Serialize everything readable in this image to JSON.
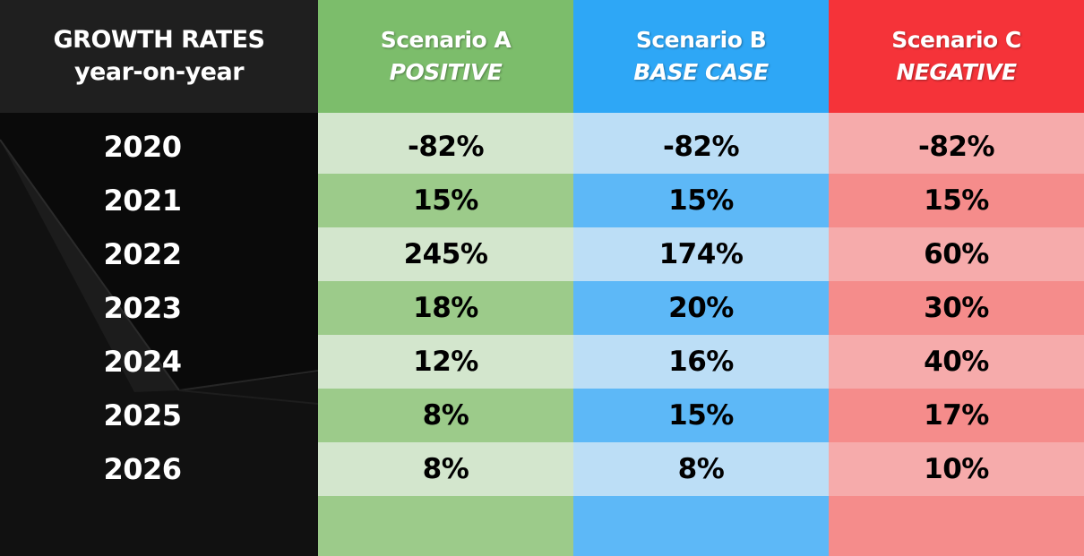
{
  "header": {
    "title_line1": "GROWTH RATES",
    "title_line2": "year-on-year"
  },
  "colors": {
    "scenario_a_header": "#7cbd6b",
    "scenario_a_light": "#d3e6cd",
    "scenario_a_dark": "#9ccb8a",
    "scenario_b_header": "#2ea7f6",
    "scenario_b_light": "#bcdef6",
    "scenario_b_dark": "#5db8f7",
    "scenario_c_header": "#f53339",
    "scenario_c_light": "#f6abab",
    "scenario_c_dark": "#f58c8b"
  },
  "chart_data": {
    "type": "table",
    "title": "GROWTH RATES year-on-year",
    "row_labels": [
      "2020",
      "2021",
      "2022",
      "2023",
      "2024",
      "2025",
      "2026"
    ],
    "columns": [
      {
        "name": "Scenario A",
        "subtitle": "POSITIVE",
        "values": [
          "-82%",
          "15%",
          "245%",
          "18%",
          "12%",
          "8%",
          "8%"
        ]
      },
      {
        "name": "Scenario B",
        "subtitle": "BASE CASE",
        "values": [
          "-82%",
          "15%",
          "174%",
          "20%",
          "16%",
          "15%",
          "8%"
        ]
      },
      {
        "name": "Scenario C",
        "subtitle": "NEGATIVE",
        "values": [
          "-82%",
          "15%",
          "60%",
          "30%",
          "40%",
          "17%",
          "10%"
        ]
      }
    ]
  }
}
